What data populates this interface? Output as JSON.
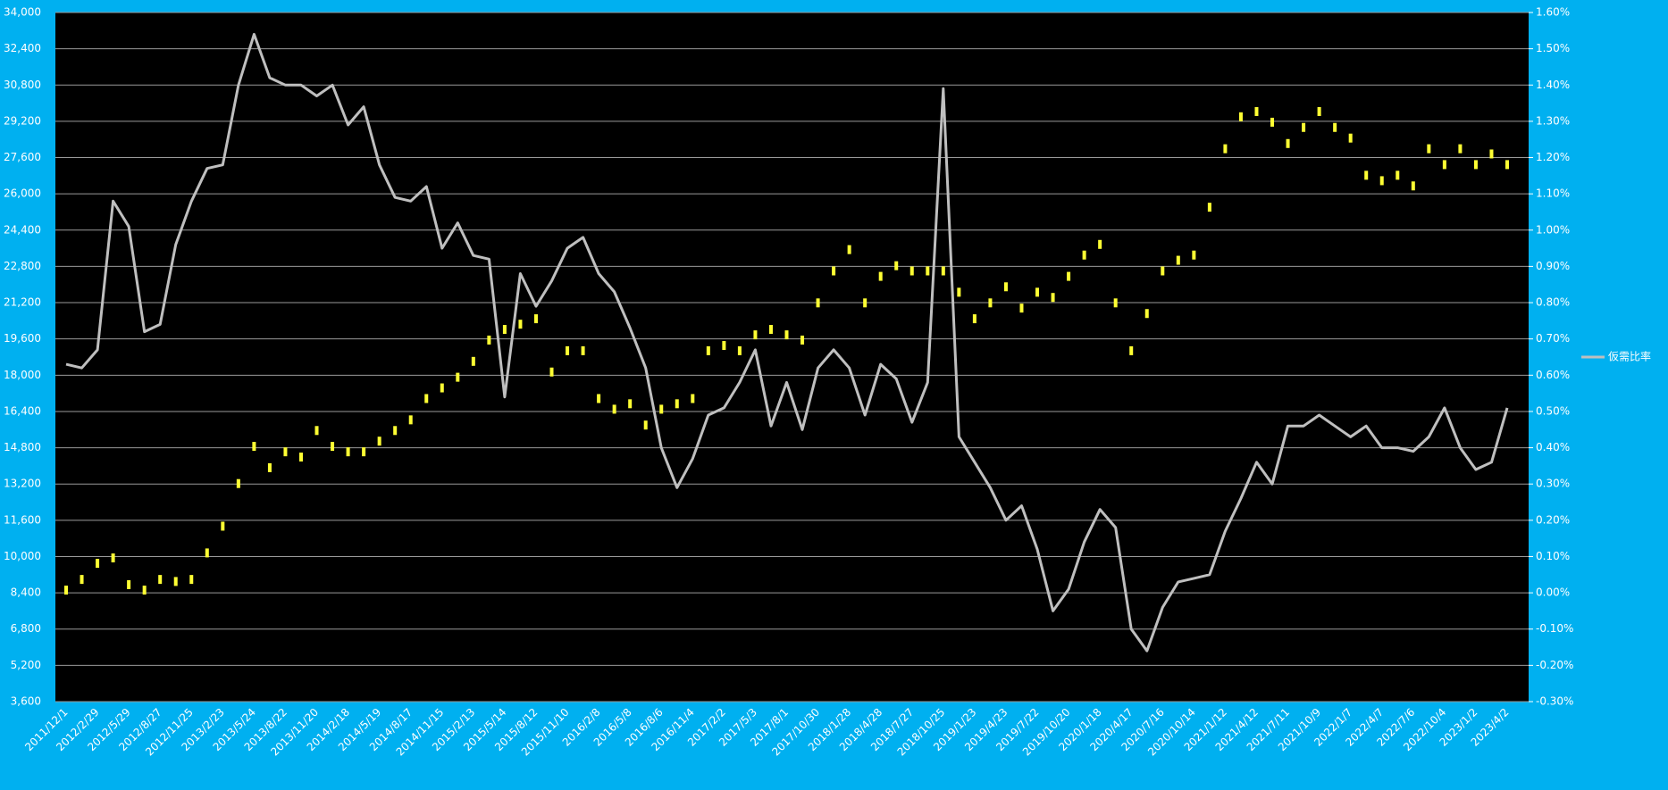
{
  "chart_data": {
    "type": "combo",
    "categories": [
      "2011/12/1",
      null,
      "2012/2/29",
      null,
      "2012/5/29",
      null,
      "2012/8/27",
      null,
      "2012/11/25",
      null,
      "2013/2/23",
      null,
      "2013/5/24",
      null,
      "2013/8/22",
      null,
      "2013/11/20",
      null,
      "2014/2/18",
      null,
      "2014/5/19",
      null,
      "2014/8/17",
      null,
      "2014/11/15",
      null,
      "2015/2/13",
      null,
      "2015/5/14",
      null,
      "2015/8/12",
      null,
      "2015/11/10",
      null,
      "2016/2/8",
      null,
      "2016/5/8",
      null,
      "2016/8/6",
      null,
      "2016/11/4",
      null,
      "2017/2/2",
      null,
      "2017/5/3",
      null,
      "2017/8/1",
      null,
      "2017/10/30",
      null,
      "2018/1/28",
      null,
      "2018/4/28",
      null,
      "2018/7/27",
      null,
      "2018/10/25",
      null,
      "2019/1/23",
      null,
      "2019/4/23",
      null,
      "2019/7/22",
      null,
      "2019/10/20",
      null,
      "2020/1/18",
      null,
      "2020/4/17",
      null,
      "2020/7/16",
      null,
      "2020/10/14",
      null,
      "2021/1/12",
      null,
      "2021/4/12",
      null,
      "2021/7/11",
      null,
      "2021/10/9",
      null,
      "2022/1/7",
      null,
      "2022/4/7",
      null,
      "2022/7/6",
      null,
      "2022/10/4",
      null,
      "2023/1/2",
      null,
      "2023/4/2"
    ],
    "series": [
      {
        "type": "scatter",
        "color": "#ffff33",
        "values": [
          8520,
          8990,
          9700,
          9940,
          8760,
          8520,
          8990,
          8900,
          8990,
          10160,
          11340,
          13220,
          14860,
          13920,
          14620,
          14390,
          15560,
          14860,
          14620,
          14620,
          15090,
          15560,
          16030,
          16970,
          17440,
          17910,
          18610,
          19550,
          20020,
          20250,
          20490,
          18140,
          19080,
          19080,
          16970,
          16500,
          16740,
          15800,
          16500,
          16740,
          16970,
          19080,
          19310,
          19080,
          19780,
          20020,
          19780,
          19550,
          21190,
          22600,
          23540,
          21190,
          22360,
          22830,
          22600,
          22600,
          22600,
          21660,
          20490,
          21190,
          21900,
          20960,
          21660,
          21430,
          22360,
          23300,
          23770,
          21190,
          19080,
          20720,
          22600,
          23070,
          23300,
          25410,
          27990,
          29400,
          29630,
          29160,
          28220,
          28930,
          29630,
          28930,
          28460,
          26820,
          26580,
          26820,
          26350,
          27990,
          27290,
          27990,
          27290,
          27760,
          27290
        ]
      },
      {
        "type": "line",
        "name": "仮需比率",
        "color": "#bfbfbf",
        "axis": "y2",
        "values": [
          0.63,
          0.62,
          0.67,
          1.08,
          1.01,
          0.72,
          0.74,
          0.96,
          1.08,
          1.17,
          1.18,
          1.4,
          1.54,
          1.42,
          1.4,
          1.4,
          1.37,
          1.4,
          1.29,
          1.34,
          1.18,
          1.09,
          1.08,
          1.12,
          0.95,
          1.02,
          0.93,
          0.92,
          0.54,
          0.88,
          0.79,
          0.86,
          0.95,
          0.98,
          0.88,
          0.83,
          0.73,
          0.62,
          0.4,
          0.29,
          0.37,
          0.49,
          0.51,
          0.58,
          0.67,
          0.46,
          0.58,
          0.45,
          0.62,
          0.67,
          0.62,
          0.49,
          0.63,
          0.59,
          0.47,
          0.58,
          1.39,
          0.43,
          0.36,
          0.29,
          0.2,
          0.24,
          0.12,
          -0.05,
          0.01,
          0.14,
          0.23,
          0.18,
          -0.1,
          -0.16,
          -0.04,
          0.03,
          0.04,
          0.05,
          0.17,
          0.26,
          0.36,
          0.3,
          0.46,
          0.46,
          0.49,
          0.46,
          0.43,
          0.46,
          0.4,
          0.4,
          0.39,
          0.43,
          0.51,
          0.4,
          0.34,
          0.36,
          0.51
        ]
      }
    ],
    "ylim": [
      3600,
      34000
    ],
    "yticks": [
      {
        "value": 3600,
        "label": "3,600"
      },
      {
        "value": 5200,
        "label": "5,200"
      },
      {
        "value": 6800,
        "label": "6,800"
      },
      {
        "value": 8400,
        "label": "8,400"
      },
      {
        "value": 10000,
        "label": "10,000"
      },
      {
        "value": 11600,
        "label": "11,600"
      },
      {
        "value": 13200,
        "label": "13,200"
      },
      {
        "value": 14800,
        "label": "14,800"
      },
      {
        "value": 16400,
        "label": "16,400"
      },
      {
        "value": 18000,
        "label": "18,000"
      },
      {
        "value": 19600,
        "label": "19,600"
      },
      {
        "value": 21200,
        "label": "21,200"
      },
      {
        "value": 22800,
        "label": "22,800"
      },
      {
        "value": 24400,
        "label": "24,400"
      },
      {
        "value": 26000,
        "label": "26,000"
      },
      {
        "value": 27600,
        "label": "27,600"
      },
      {
        "value": 29200,
        "label": "29,200"
      },
      {
        "value": 30800,
        "label": "30,800"
      },
      {
        "value": 32400,
        "label": "32,400"
      },
      {
        "value": 34000,
        "label": "34,000"
      }
    ],
    "y2lim": [
      -0.3,
      1.6
    ],
    "y2ticks": [
      {
        "value": -0.3,
        "label": "-0.30%"
      },
      {
        "value": -0.2,
        "label": "-0.20%"
      },
      {
        "value": -0.1,
        "label": "-0.10%"
      },
      {
        "value": 0,
        "label": "0.00%"
      },
      {
        "value": 0.1,
        "label": "0.10%"
      },
      {
        "value": 0.2,
        "label": "0.20%"
      },
      {
        "value": 0.3,
        "label": "0.30%"
      },
      {
        "value": 0.4,
        "label": "0.40%"
      },
      {
        "value": 0.5,
        "label": "0.50%"
      },
      {
        "value": 0.6,
        "label": "0.60%"
      },
      {
        "value": 0.7,
        "label": "0.70%"
      },
      {
        "value": 0.8,
        "label": "0.80%"
      },
      {
        "value": 0.9,
        "label": "0.90%"
      },
      {
        "value": 1.0,
        "label": "1.00%"
      },
      {
        "value": 1.1,
        "label": "1.10%"
      },
      {
        "value": 1.2,
        "label": "1.20%"
      },
      {
        "value": 1.3,
        "label": "1.30%"
      },
      {
        "value": 1.4,
        "label": "1.40%"
      },
      {
        "value": 1.5,
        "label": "1.50%"
      },
      {
        "value": 1.6,
        "label": "1.60%"
      }
    ],
    "grid": true,
    "legend": "right"
  }
}
